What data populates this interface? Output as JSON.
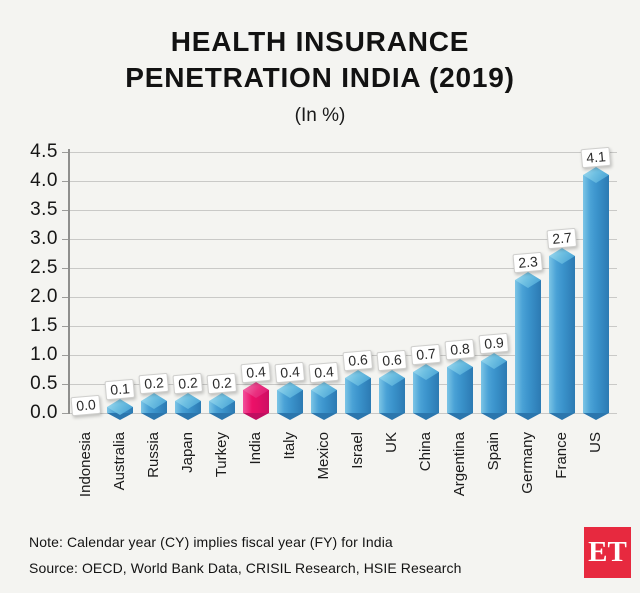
{
  "title": {
    "line1": "HEALTH INSURANCE",
    "line2": "PENETRATION INDIA (2019)",
    "subtitle": "(In %)"
  },
  "chart_data": {
    "type": "bar",
    "title": "HEALTH INSURANCE PENETRATION INDIA (2019)",
    "subtitle": "(In %)",
    "categories": [
      "Indonesia",
      "Australia",
      "Russia",
      "Japan",
      "Turkey",
      "India",
      "Italy",
      "Mexico",
      "Israel",
      "UK",
      "China",
      "Argentina",
      "Spain",
      "Germany",
      "France",
      "US"
    ],
    "values": [
      0.0,
      0.1,
      0.2,
      0.2,
      0.2,
      0.4,
      0.4,
      0.4,
      0.6,
      0.6,
      0.7,
      0.8,
      0.9,
      2.3,
      2.7,
      4.1
    ],
    "value_labels": [
      "0.0",
      "0.1",
      "0.2",
      "0.2",
      "0.2",
      "0.4",
      "0.4",
      "0.4",
      "0.6",
      "0.6",
      "0.7",
      "0.8",
      "0.9",
      "2.3",
      "2.7",
      "4.1"
    ],
    "highlight_category": "India",
    "xlabel": "",
    "ylabel": "",
    "ylim": [
      0,
      4.5
    ],
    "ytick_labels": [
      "0.0",
      "0.5",
      "1.0",
      "1.5",
      "2.0",
      "2.5",
      "3.0",
      "3.5",
      "4.0",
      "4.5"
    ],
    "grid": true,
    "legend": "none",
    "bar_color": "#3a92cb",
    "bar_cap_color": "#6fc0e2",
    "highlight_color": "#ec1168",
    "highlight_cap_color": "#ea2f7f"
  },
  "footer": {
    "note": "Note: Calendar year (CY) implies fiscal year (FY) for India",
    "source": "Source: OECD, World Bank Data, CRISIL Research, HSIE Research",
    "logo_text": "ET",
    "logo_color": "#e7293f"
  }
}
